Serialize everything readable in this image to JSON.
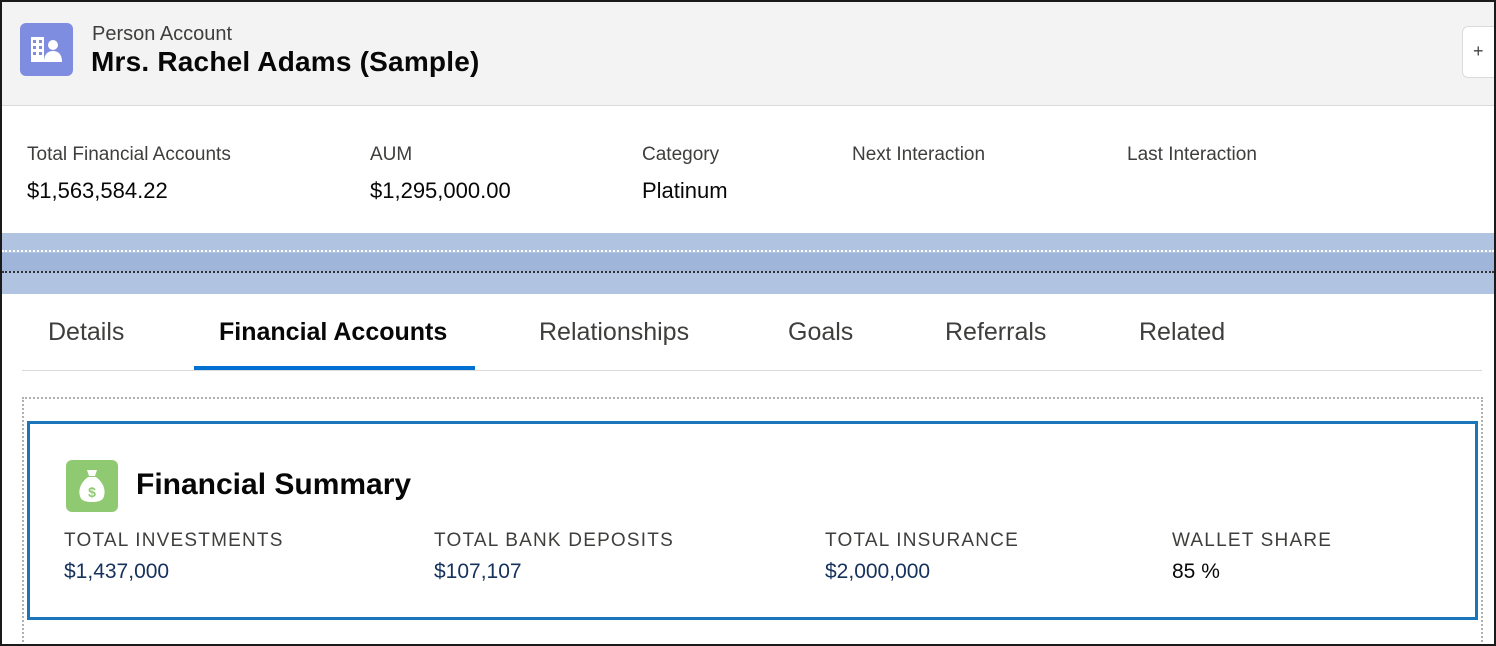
{
  "header": {
    "object_type": "Person Account",
    "record_name": "Mrs. Rachel Adams (Sample)",
    "button_label": "+"
  },
  "highlights": [
    {
      "label": "Total Financial Accounts",
      "value": "$1,563,584.22"
    },
    {
      "label": "AUM",
      "value": "$1,295,000.00"
    },
    {
      "label": "Category",
      "value": "Platinum"
    },
    {
      "label": "Next Interaction",
      "value": ""
    },
    {
      "label": "Last Interaction",
      "value": ""
    }
  ],
  "tabs": [
    {
      "label": "Details"
    },
    {
      "label": "Financial Accounts",
      "active": true
    },
    {
      "label": "Relationships"
    },
    {
      "label": "Goals"
    },
    {
      "label": "Referrals"
    },
    {
      "label": "Related"
    }
  ],
  "financial_summary": {
    "title": "Financial Summary",
    "metrics": [
      {
        "label": "TOTAL INVESTMENTS",
        "value": "$1,437,000"
      },
      {
        "label": "TOTAL BANK DEPOSITS",
        "value": "$107,107"
      },
      {
        "label": "TOTAL INSURANCE",
        "value": "$2,000,000"
      },
      {
        "label": "WALLET SHARE",
        "value": "85 %"
      }
    ]
  },
  "colors": {
    "accent": "#0070d2",
    "card_border": "#1b75bb",
    "account_icon": "#7f8de1",
    "summary_icon": "#8fc971",
    "link_value": "#16325c",
    "banner": "#b0c3e0"
  },
  "icons": {
    "record_icon": "person-account-icon",
    "summary_icon": "money-bag-icon"
  }
}
